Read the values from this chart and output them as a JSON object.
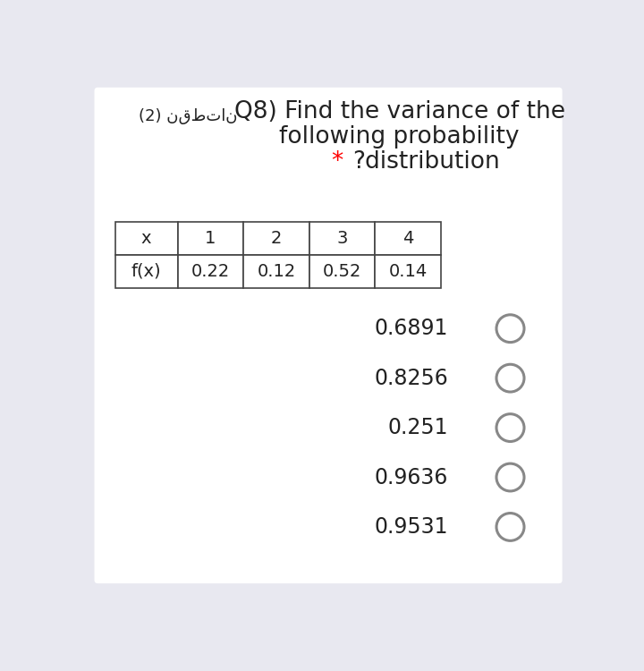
{
  "bg_color": "#e8e8f0",
  "card_color": "#ffffff",
  "arabic_label": "(2) نقطتان",
  "title_line1": "Q8) Find the variance of the",
  "title_line2": "following probability",
  "title_line3_text": "?distribution",
  "star_color": "#ff0000",
  "table_x_labels": [
    "x",
    "1",
    "2",
    "3",
    "4"
  ],
  "table_fx_labels": [
    "f(x)",
    "0.22",
    "0.12",
    "0.52",
    "0.14"
  ],
  "options": [
    "0.6891",
    "0.8256",
    "0.251",
    "0.9636",
    "0.9531"
  ],
  "font_size_title": 19,
  "font_size_arabic": 13,
  "font_size_table": 14,
  "font_size_options": 17,
  "circle_color": "#888888",
  "text_color": "#222222"
}
